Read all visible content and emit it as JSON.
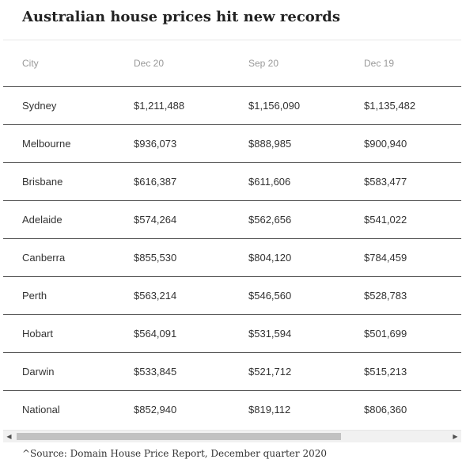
{
  "title": "Australian house prices hit new records",
  "table": {
    "headers": [
      "City",
      "Dec 20",
      "Sep 20",
      "Dec 19"
    ],
    "rows": [
      [
        "Sydney",
        "$1,211,488",
        "$1,156,090",
        "$1,135,482"
      ],
      [
        "Melbourne",
        "$936,073",
        "$888,985",
        "$900,940"
      ],
      [
        "Brisbane",
        "$616,387",
        "$611,606",
        "$583,477"
      ],
      [
        "Adelaide",
        "$574,264",
        "$562,656",
        "$541,022"
      ],
      [
        "Canberra",
        "$855,530",
        "$804,120",
        "$784,459"
      ],
      [
        "Perth",
        "$563,214",
        "$546,560",
        "$528,783"
      ],
      [
        "Hobart",
        "$564,091",
        "$531,594",
        "$501,699"
      ],
      [
        "Darwin",
        "$533,845",
        "$521,712",
        "$515,213"
      ],
      [
        "National",
        "$852,940",
        "$819,112",
        "$806,360"
      ]
    ]
  },
  "scrollbar": {
    "left_icon": "scroll-left-arrow-icon",
    "right_icon": "scroll-right-arrow-icon",
    "left_glyph": "◀",
    "right_glyph": "▶"
  },
  "source": "^Source: Domain House Price Report, December quarter 2020"
}
